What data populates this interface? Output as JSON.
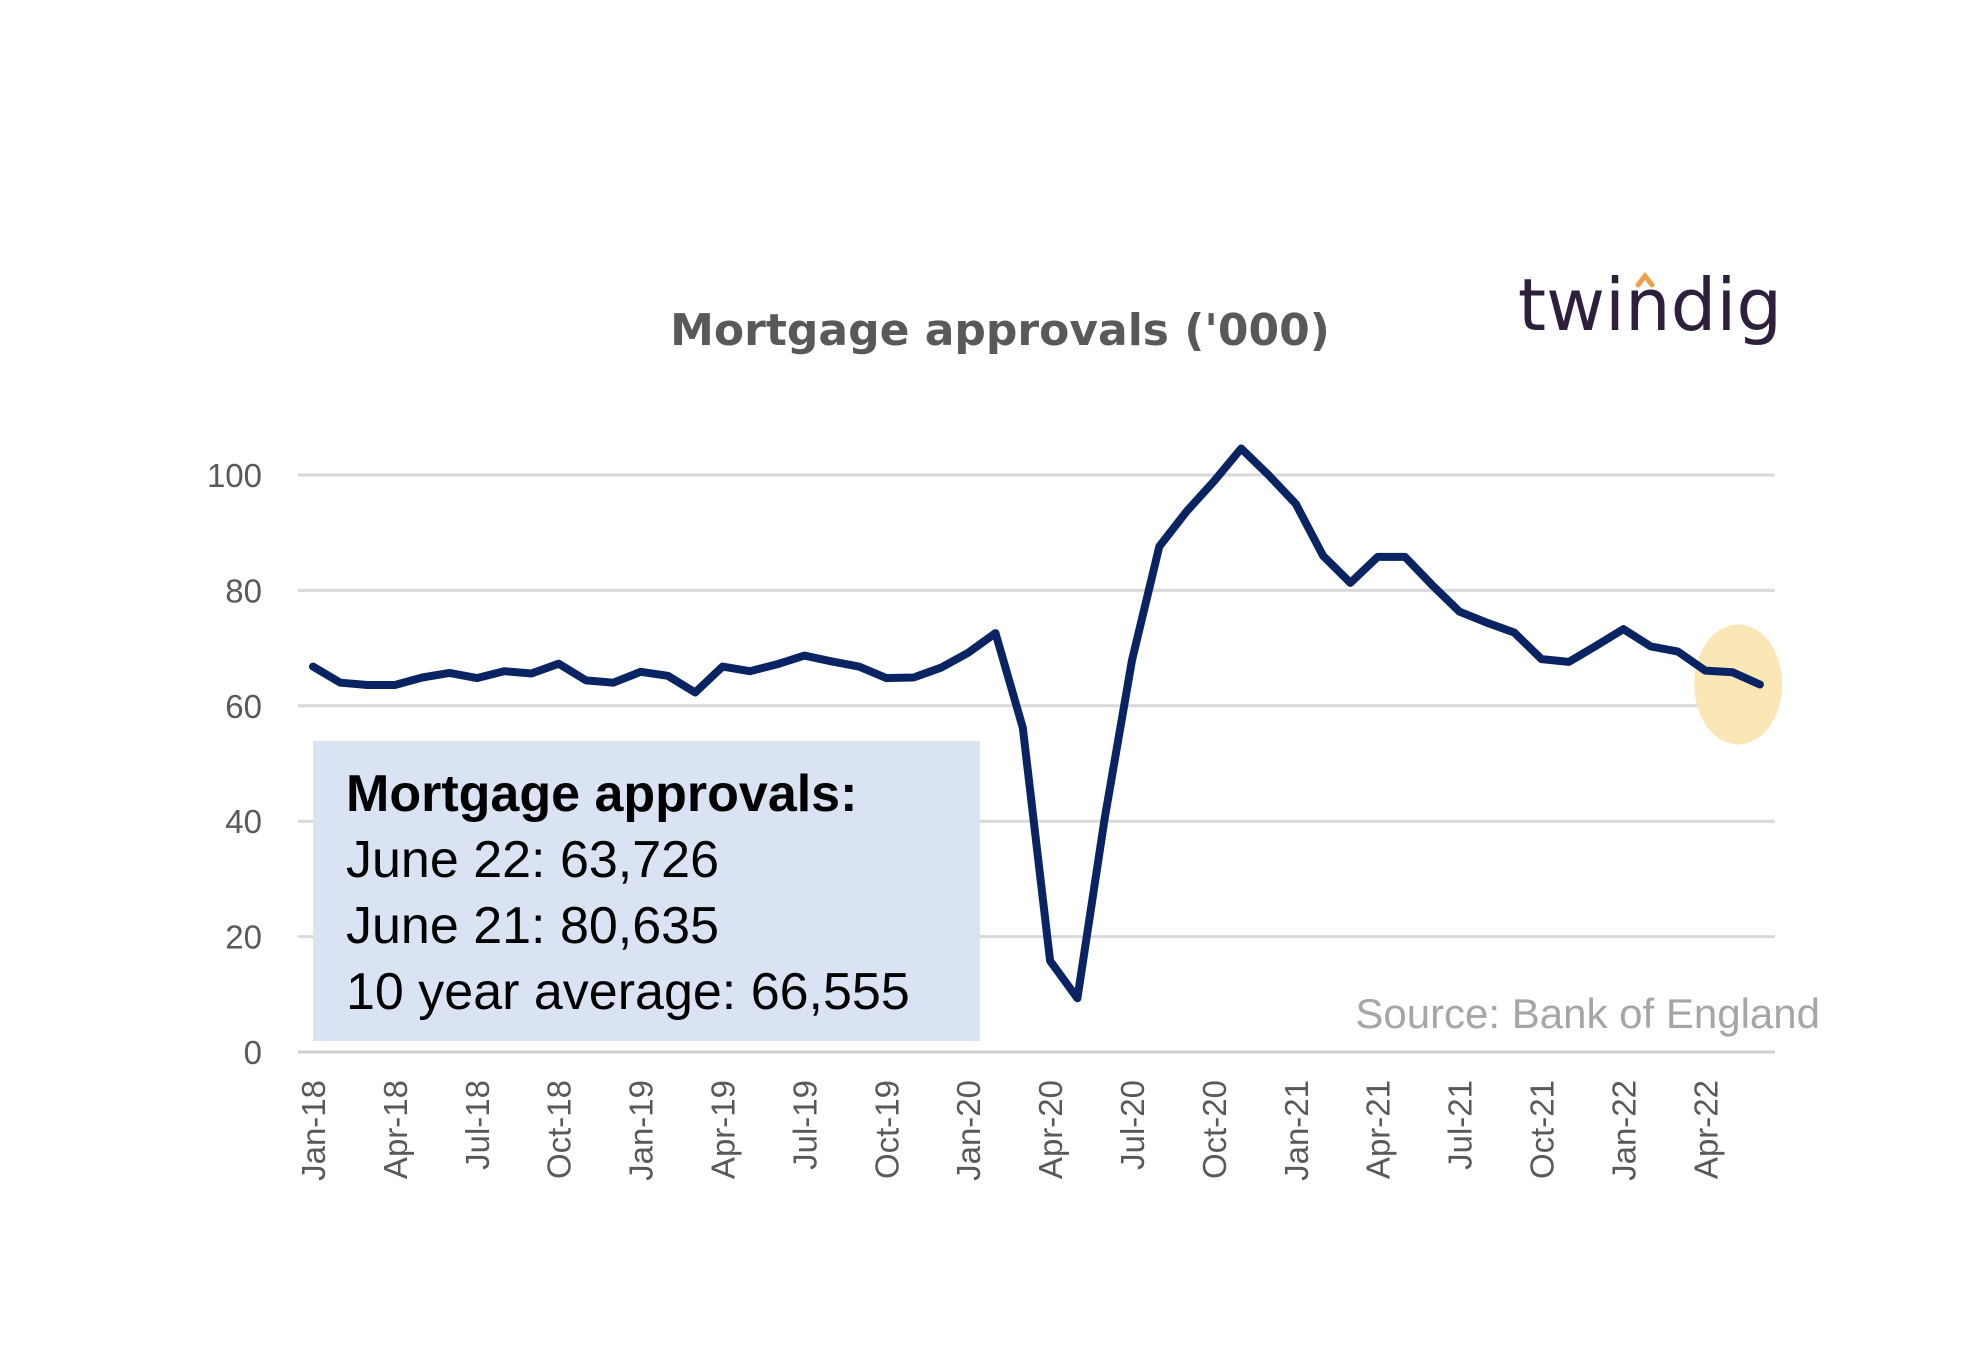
{
  "chart_data": {
    "type": "line",
    "title": "Mortgage approvals ('000)",
    "xlabel": "",
    "ylabel": "",
    "ylim": [
      0,
      105
    ],
    "yticks": [
      0,
      20,
      40,
      60,
      80,
      100
    ],
    "grid": true,
    "x_tick_labels": [
      "Jan-18",
      "Apr-18",
      "Jul-18",
      "Oct-18",
      "Jan-19",
      "Apr-19",
      "Jul-19",
      "Oct-19",
      "Jan-20",
      "Apr-20",
      "Jul-20",
      "Oct-20",
      "Jan-21",
      "Apr-21",
      "Jul-21",
      "Oct-21",
      "Jan-22",
      "Apr-22"
    ],
    "x": [
      "2018-01",
      "2018-02",
      "2018-03",
      "2018-04",
      "2018-05",
      "2018-06",
      "2018-07",
      "2018-08",
      "2018-09",
      "2018-10",
      "2018-11",
      "2018-12",
      "2019-01",
      "2019-02",
      "2019-03",
      "2019-04",
      "2019-05",
      "2019-06",
      "2019-07",
      "2019-08",
      "2019-09",
      "2019-10",
      "2019-11",
      "2019-12",
      "2020-01",
      "2020-02",
      "2020-03",
      "2020-04",
      "2020-05",
      "2020-06",
      "2020-07",
      "2020-08",
      "2020-09",
      "2020-10",
      "2020-11",
      "2020-12",
      "2021-01",
      "2021-02",
      "2021-03",
      "2021-04",
      "2021-05",
      "2021-06",
      "2021-07",
      "2021-08",
      "2021-09",
      "2021-10",
      "2021-11",
      "2021-12",
      "2022-01",
      "2022-02",
      "2022-03",
      "2022-04",
      "2022-05",
      "2022-06"
    ],
    "series": [
      {
        "color": "#0a2463",
        "values": [
          66.8,
          64.0,
          63.6,
          63.6,
          64.9,
          65.7,
          64.8,
          66.0,
          65.6,
          67.3,
          64.4,
          64.0,
          65.9,
          65.2,
          62.3,
          66.8,
          66.0,
          67.2,
          68.7,
          67.7,
          66.8,
          64.8,
          64.9,
          66.6,
          69.2,
          72.6,
          56.2,
          15.8,
          9.3,
          40.5,
          67.9,
          87.6,
          93.7,
          98.9,
          104.6,
          100.0,
          95.0,
          86.0,
          81.3,
          85.8,
          85.8,
          80.9,
          76.3,
          74.4,
          72.7,
          68.1,
          67.6,
          70.4,
          73.3,
          70.3,
          69.4,
          66.1,
          65.8,
          63.7
        ]
      }
    ],
    "highlight_color": "#fbe7b5",
    "source": "Source: Bank of England",
    "logo_text": "twindig",
    "logo_accent_color": "#f0a04b",
    "callout": {
      "heading": "Mortgage approvals:",
      "lines": [
        "June 22: 63,726",
        "June 21: 80,635",
        "10 year average: 66,555"
      ]
    }
  }
}
